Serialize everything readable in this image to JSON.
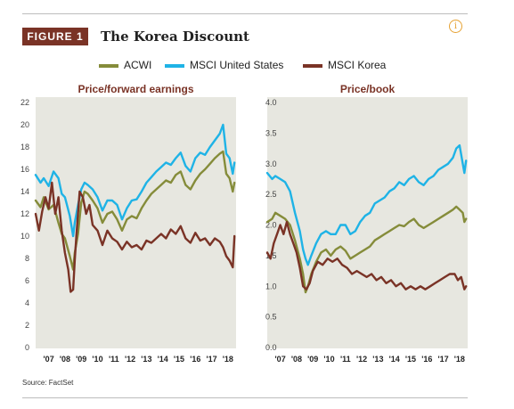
{
  "figure": {
    "label": "FIGURE 1",
    "title": "The Korea Discount",
    "info_icon": "info-icon",
    "source": "Source: FactSet"
  },
  "colors": {
    "ACWI": "#858c3a",
    "MSCI United States": "#1fb3e6",
    "MSCI Korea": "#7a3326",
    "badge": "#7a3326",
    "panel_bg": "#e7e7e0"
  },
  "legend": [
    "ACWI",
    "MSCI United States",
    "MSCI Korea"
  ],
  "chart_data": [
    {
      "type": "line",
      "title": "Price/forward earnings",
      "xlabel": "",
      "ylabel": "",
      "ylim": [
        0,
        22
      ],
      "yticks": [
        "0",
        "2",
        "4",
        "6",
        "8",
        "10",
        "12",
        "14",
        "16",
        "18",
        "20",
        "22"
      ],
      "xlim": [
        2006.5,
        2018.8
      ],
      "xticks": [
        "'07",
        "'08",
        "'09",
        "'10",
        "'11",
        "'12",
        "'13",
        "'14",
        "'15",
        "'16",
        "'17",
        "'18"
      ],
      "grid": false,
      "series": [
        {
          "name": "ACWI",
          "x": [
            2006.5,
            2006.8,
            2007.0,
            2007.3,
            2007.6,
            2007.9,
            2008.1,
            2008.3,
            2008.6,
            2008.8,
            2008.9,
            2009.1,
            2009.3,
            2009.5,
            2009.7,
            2010.0,
            2010.3,
            2010.6,
            2010.9,
            2011.2,
            2011.5,
            2011.8,
            2012.1,
            2012.4,
            2012.7,
            2013.0,
            2013.3,
            2013.6,
            2013.9,
            2014.2,
            2014.5,
            2014.8,
            2015.1,
            2015.4,
            2015.7,
            2016.0,
            2016.3,
            2016.6,
            2016.9,
            2017.2,
            2017.5,
            2017.8,
            2018.0,
            2018.2,
            2018.4,
            2018.6,
            2018.7
          ],
          "y": [
            13.2,
            12.6,
            13.5,
            12.4,
            12.8,
            11.2,
            10.2,
            9.8,
            8.2,
            7.0,
            8.5,
            10.2,
            13.0,
            14.0,
            13.8,
            13.2,
            12.5,
            11.2,
            12.0,
            12.2,
            11.5,
            10.5,
            11.5,
            11.8,
            11.6,
            12.5,
            13.2,
            13.8,
            14.2,
            14.6,
            15.0,
            14.8,
            15.5,
            15.8,
            14.6,
            14.2,
            15.0,
            15.6,
            16.0,
            16.5,
            17.0,
            17.4,
            17.6,
            15.6,
            15.2,
            14.0,
            14.8
          ]
        },
        {
          "name": "MSCI United States",
          "x": [
            2006.5,
            2006.8,
            2007.0,
            2007.3,
            2007.6,
            2007.9,
            2008.1,
            2008.3,
            2008.6,
            2008.8,
            2008.9,
            2009.1,
            2009.3,
            2009.5,
            2009.7,
            2010.0,
            2010.3,
            2010.6,
            2010.9,
            2011.2,
            2011.5,
            2011.8,
            2012.1,
            2012.4,
            2012.7,
            2013.0,
            2013.3,
            2013.6,
            2013.9,
            2014.2,
            2014.5,
            2014.8,
            2015.1,
            2015.4,
            2015.7,
            2016.0,
            2016.3,
            2016.6,
            2016.9,
            2017.2,
            2017.5,
            2017.8,
            2018.0,
            2018.2,
            2018.4,
            2018.6,
            2018.7
          ],
          "y": [
            15.5,
            14.8,
            15.2,
            14.5,
            15.8,
            15.2,
            13.8,
            13.5,
            11.8,
            10.0,
            11.2,
            12.8,
            14.2,
            14.8,
            14.6,
            14.2,
            13.5,
            12.3,
            13.2,
            13.2,
            12.8,
            11.5,
            12.5,
            13.2,
            13.3,
            14.0,
            14.8,
            15.3,
            15.8,
            16.2,
            16.6,
            16.4,
            17.0,
            17.5,
            16.3,
            15.8,
            17.0,
            17.5,
            17.3,
            18.0,
            18.6,
            19.2,
            20.0,
            17.4,
            17.0,
            15.6,
            16.6
          ]
        },
        {
          "name": "MSCI Korea",
          "x": [
            2006.5,
            2006.7,
            2006.9,
            2007.1,
            2007.3,
            2007.5,
            2007.7,
            2007.9,
            2008.1,
            2008.3,
            2008.5,
            2008.65,
            2008.8,
            2008.9,
            2009.0,
            2009.2,
            2009.4,
            2009.6,
            2009.8,
            2010.0,
            2010.3,
            2010.6,
            2010.9,
            2011.2,
            2011.5,
            2011.8,
            2012.1,
            2012.4,
            2012.7,
            2013.0,
            2013.3,
            2013.6,
            2013.9,
            2014.2,
            2014.5,
            2014.8,
            2015.1,
            2015.4,
            2015.7,
            2016.0,
            2016.3,
            2016.6,
            2016.9,
            2017.2,
            2017.5,
            2017.8,
            2018.0,
            2018.2,
            2018.4,
            2018.6,
            2018.7
          ],
          "y": [
            12.0,
            10.5,
            12.2,
            13.5,
            12.5,
            14.8,
            12.0,
            13.5,
            10.5,
            8.5,
            7.0,
            5.0,
            5.2,
            7.8,
            10.0,
            14.0,
            13.5,
            12.0,
            12.8,
            11.0,
            10.5,
            9.2,
            10.5,
            9.8,
            9.5,
            8.8,
            9.5,
            9.0,
            9.2,
            8.8,
            9.6,
            9.4,
            9.8,
            10.2,
            9.8,
            10.6,
            10.2,
            10.9,
            9.8,
            9.4,
            10.3,
            9.6,
            9.8,
            9.2,
            9.8,
            9.5,
            9.0,
            8.2,
            7.8,
            7.2,
            10.0
          ]
        }
      ]
    },
    {
      "type": "line",
      "title": "Price/book",
      "xlabel": "",
      "ylabel": "",
      "ylim": [
        0,
        4.0
      ],
      "yticks": [
        "0.0",
        "0.5",
        "1.0",
        "1.5",
        "2.0",
        "2.5",
        "3.0",
        "3.5",
        "4.0"
      ],
      "xlim": [
        2006.5,
        2018.8
      ],
      "xticks": [
        "'07",
        "'08",
        "'09",
        "'10",
        "'11",
        "'12",
        "'13",
        "'14",
        "'15",
        "'16",
        "'17",
        "'18"
      ],
      "grid": false,
      "series": [
        {
          "name": "ACWI",
          "x": [
            2006.5,
            2006.8,
            2007.0,
            2007.3,
            2007.6,
            2007.9,
            2008.2,
            2008.5,
            2008.7,
            2008.85,
            2009.0,
            2009.2,
            2009.5,
            2009.8,
            2010.1,
            2010.4,
            2010.7,
            2011.0,
            2011.3,
            2011.6,
            2011.9,
            2012.2,
            2012.5,
            2012.8,
            2013.1,
            2013.4,
            2013.7,
            2014.0,
            2014.3,
            2014.6,
            2014.9,
            2015.2,
            2015.5,
            2015.8,
            2016.1,
            2016.4,
            2016.7,
            2017.0,
            2017.3,
            2017.6,
            2017.9,
            2018.1,
            2018.3,
            2018.5,
            2018.6,
            2018.7
          ],
          "y": [
            2.05,
            2.1,
            2.2,
            2.15,
            2.1,
            2.0,
            1.75,
            1.45,
            1.2,
            0.9,
            1.0,
            1.2,
            1.4,
            1.55,
            1.6,
            1.5,
            1.6,
            1.65,
            1.58,
            1.45,
            1.5,
            1.55,
            1.6,
            1.65,
            1.75,
            1.8,
            1.85,
            1.9,
            1.95,
            2.0,
            1.98,
            2.05,
            2.1,
            2.0,
            1.95,
            2.0,
            2.05,
            2.1,
            2.15,
            2.2,
            2.25,
            2.3,
            2.25,
            2.2,
            2.05,
            2.1
          ]
        },
        {
          "name": "MSCI United States",
          "x": [
            2006.5,
            2006.8,
            2007.0,
            2007.3,
            2007.6,
            2007.9,
            2008.2,
            2008.5,
            2008.7,
            2008.85,
            2009.0,
            2009.2,
            2009.5,
            2009.8,
            2010.1,
            2010.4,
            2010.7,
            2011.0,
            2011.3,
            2011.6,
            2011.9,
            2012.2,
            2012.5,
            2012.8,
            2013.1,
            2013.4,
            2013.7,
            2014.0,
            2014.3,
            2014.6,
            2014.9,
            2015.2,
            2015.5,
            2015.8,
            2016.1,
            2016.4,
            2016.7,
            2017.0,
            2017.3,
            2017.6,
            2017.9,
            2018.1,
            2018.3,
            2018.5,
            2018.6,
            2018.7
          ],
          "y": [
            2.85,
            2.75,
            2.8,
            2.75,
            2.7,
            2.55,
            2.2,
            1.9,
            1.6,
            1.45,
            1.35,
            1.5,
            1.7,
            1.85,
            1.9,
            1.85,
            1.85,
            2.0,
            2.0,
            1.85,
            1.9,
            2.05,
            2.15,
            2.2,
            2.35,
            2.4,
            2.45,
            2.55,
            2.6,
            2.7,
            2.65,
            2.75,
            2.8,
            2.7,
            2.65,
            2.75,
            2.8,
            2.9,
            2.95,
            3.0,
            3.1,
            3.25,
            3.3,
            3.0,
            2.85,
            3.05
          ]
        },
        {
          "name": "MSCI Korea",
          "x": [
            2006.5,
            2006.7,
            2006.9,
            2007.1,
            2007.3,
            2007.5,
            2007.7,
            2007.9,
            2008.1,
            2008.3,
            2008.5,
            2008.7,
            2008.9,
            2009.1,
            2009.3,
            2009.6,
            2009.9,
            2010.2,
            2010.5,
            2010.8,
            2011.1,
            2011.4,
            2011.7,
            2012.0,
            2012.3,
            2012.6,
            2012.9,
            2013.2,
            2013.5,
            2013.8,
            2014.1,
            2014.4,
            2014.7,
            2015.0,
            2015.3,
            2015.6,
            2015.9,
            2016.2,
            2016.5,
            2016.8,
            2017.1,
            2017.4,
            2017.7,
            2018.0,
            2018.2,
            2018.4,
            2018.6,
            2018.7
          ],
          "y": [
            1.55,
            1.45,
            1.7,
            1.85,
            2.0,
            1.85,
            2.05,
            1.85,
            1.7,
            1.55,
            1.3,
            1.0,
            0.95,
            1.05,
            1.25,
            1.4,
            1.35,
            1.45,
            1.4,
            1.45,
            1.35,
            1.3,
            1.2,
            1.25,
            1.2,
            1.15,
            1.2,
            1.1,
            1.15,
            1.05,
            1.1,
            1.0,
            1.05,
            0.95,
            1.0,
            0.95,
            1.0,
            0.95,
            1.0,
            1.05,
            1.1,
            1.15,
            1.2,
            1.2,
            1.1,
            1.15,
            0.95,
            1.0
          ]
        }
      ]
    }
  ]
}
